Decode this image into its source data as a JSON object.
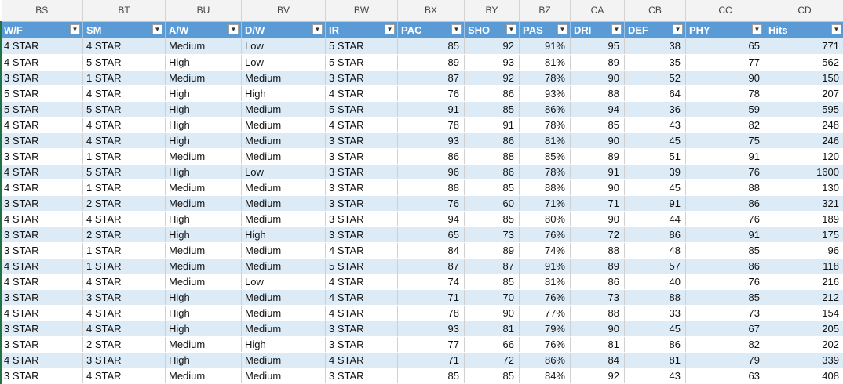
{
  "column_letters": [
    "BS",
    "BT",
    "BU",
    "BV",
    "BW",
    "BX",
    "BY",
    "BZ",
    "CA",
    "CB",
    "CC",
    "CD"
  ],
  "headers": [
    "W/F",
    "SM",
    "A/W",
    "D/W",
    "IR",
    "PAC",
    "SHO",
    "PAS",
    "DRI",
    "DEF",
    "PHY",
    "Hits"
  ],
  "filter_icon": "dropdown-arrow-icon",
  "colors": {
    "header_bg": "#5b9bd5",
    "band_bg": "#ddebf7",
    "selection_border": "#217346"
  },
  "rows": [
    [
      "4 STAR",
      "4 STAR",
      "Medium",
      "Low",
      "5 STAR",
      "85",
      "92",
      "91%",
      "95",
      "38",
      "65",
      "771"
    ],
    [
      "4 STAR",
      "5 STAR",
      "High",
      "Low",
      "5 STAR",
      "89",
      "93",
      "81%",
      "89",
      "35",
      "77",
      "562"
    ],
    [
      "3 STAR",
      "1 STAR",
      "Medium",
      "Medium",
      "3 STAR",
      "87",
      "92",
      "78%",
      "90",
      "52",
      "90",
      "150"
    ],
    [
      "5 STAR",
      "4 STAR",
      "High",
      "High",
      "4 STAR",
      "76",
      "86",
      "93%",
      "88",
      "64",
      "78",
      "207"
    ],
    [
      "5 STAR",
      "5 STAR",
      "High",
      "Medium",
      "5 STAR",
      "91",
      "85",
      "86%",
      "94",
      "36",
      "59",
      "595"
    ],
    [
      "4 STAR",
      "4 STAR",
      "High",
      "Medium",
      "4 STAR",
      "78",
      "91",
      "78%",
      "85",
      "43",
      "82",
      "248"
    ],
    [
      "3 STAR",
      "4 STAR",
      "High",
      "Medium",
      "3 STAR",
      "93",
      "86",
      "81%",
      "90",
      "45",
      "75",
      "246"
    ],
    [
      "3 STAR",
      "1 STAR",
      "Medium",
      "Medium",
      "3 STAR",
      "86",
      "88",
      "85%",
      "89",
      "51",
      "91",
      "120"
    ],
    [
      "4 STAR",
      "5 STAR",
      "High",
      "Low",
      "3 STAR",
      "96",
      "86",
      "78%",
      "91",
      "39",
      "76",
      "1600"
    ],
    [
      "4 STAR",
      "1 STAR",
      "Medium",
      "Medium",
      "3 STAR",
      "88",
      "85",
      "88%",
      "90",
      "45",
      "88",
      "130"
    ],
    [
      "3 STAR",
      "2 STAR",
      "Medium",
      "Medium",
      "3 STAR",
      "76",
      "60",
      "71%",
      "71",
      "91",
      "86",
      "321"
    ],
    [
      "4 STAR",
      "4 STAR",
      "High",
      "Medium",
      "3 STAR",
      "94",
      "85",
      "80%",
      "90",
      "44",
      "76",
      "189"
    ],
    [
      "3 STAR",
      "2 STAR",
      "High",
      "High",
      "3 STAR",
      "65",
      "73",
      "76%",
      "72",
      "86",
      "91",
      "175"
    ],
    [
      "3 STAR",
      "1 STAR",
      "Medium",
      "Medium",
      "4 STAR",
      "84",
      "89",
      "74%",
      "88",
      "48",
      "85",
      "96"
    ],
    [
      "4 STAR",
      "1 STAR",
      "Medium",
      "Medium",
      "5 STAR",
      "87",
      "87",
      "91%",
      "89",
      "57",
      "86",
      "118"
    ],
    [
      "4 STAR",
      "4 STAR",
      "Medium",
      "Low",
      "4 STAR",
      "74",
      "85",
      "81%",
      "86",
      "40",
      "76",
      "216"
    ],
    [
      "3 STAR",
      "3 STAR",
      "High",
      "Medium",
      "4 STAR",
      "71",
      "70",
      "76%",
      "73",
      "88",
      "85",
      "212"
    ],
    [
      "4 STAR",
      "4 STAR",
      "High",
      "Medium",
      "4 STAR",
      "78",
      "90",
      "77%",
      "88",
      "33",
      "73",
      "154"
    ],
    [
      "3 STAR",
      "4 STAR",
      "High",
      "Medium",
      "3 STAR",
      "93",
      "81",
      "79%",
      "90",
      "45",
      "67",
      "205"
    ],
    [
      "3 STAR",
      "2 STAR",
      "Medium",
      "High",
      "3 STAR",
      "77",
      "66",
      "76%",
      "81",
      "86",
      "82",
      "202"
    ],
    [
      "4 STAR",
      "3 STAR",
      "High",
      "Medium",
      "4 STAR",
      "71",
      "72",
      "86%",
      "84",
      "81",
      "79",
      "339"
    ],
    [
      "3 STAR",
      "4 STAR",
      "Medium",
      "Medium",
      "3 STAR",
      "85",
      "85",
      "84%",
      "92",
      "43",
      "63",
      "408"
    ]
  ]
}
